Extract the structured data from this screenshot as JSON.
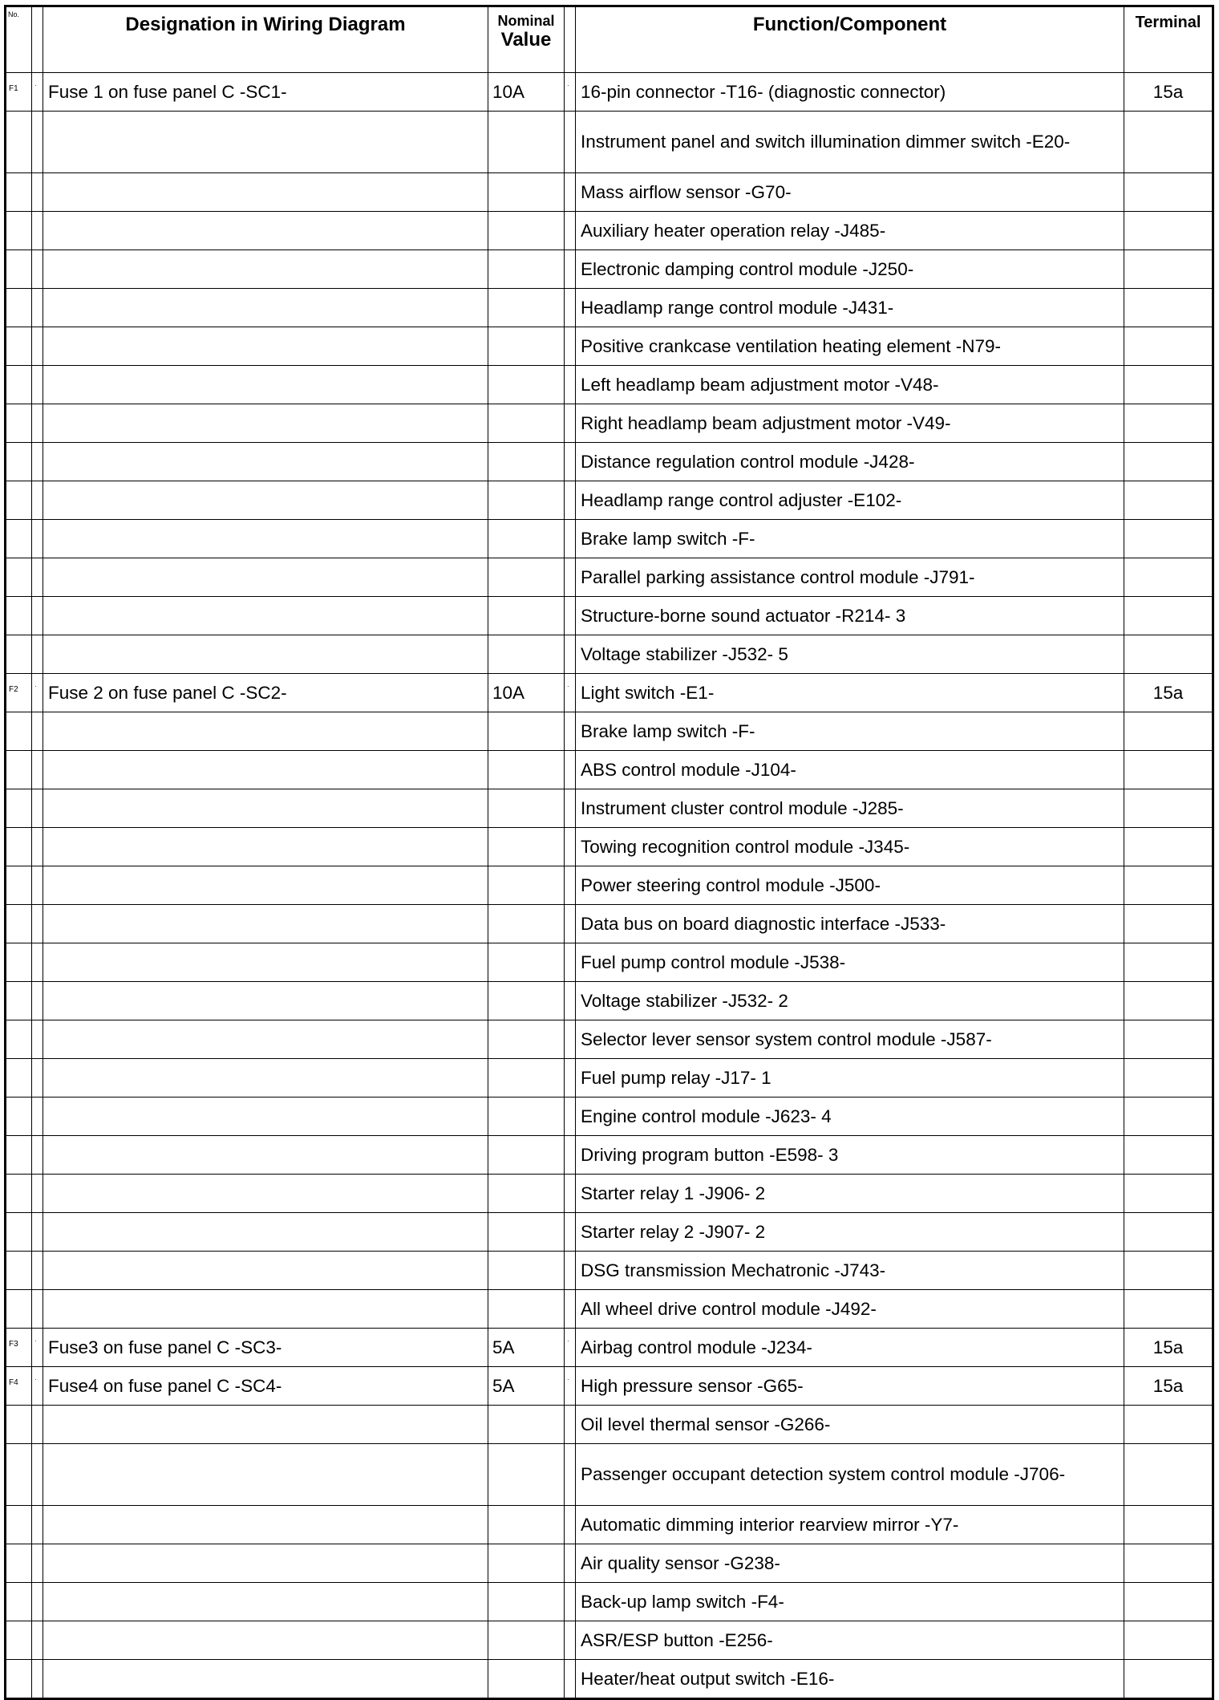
{
  "headers": {
    "no": "No.",
    "designation": "Designation in Wiring Diagram",
    "nominal_line1": "Nominal",
    "nominal_line2": "Value",
    "function": "Function/Component",
    "terminal": "Terminal"
  },
  "rows": [
    {
      "no": "F1",
      "designation": "Fuse 1 on fuse panel C -SC1-",
      "nominal": "10A",
      "function": "16-pin connector -T16- (diagnostic connector)",
      "terminal": "15a"
    },
    {
      "function": "Instrument panel and switch illumination dimmer switch -E20-",
      "tall": true
    },
    {
      "function": "Mass airflow sensor -G70-"
    },
    {
      "function": "Auxiliary heater operation relay -J485-"
    },
    {
      "function": "Electronic damping control module -J250-"
    },
    {
      "function": "Headlamp range control module -J431-"
    },
    {
      "function": "Positive crankcase ventilation heating element -N79-"
    },
    {
      "function": "Left headlamp beam adjustment motor -V48-"
    },
    {
      "function": "Right headlamp beam adjustment motor -V49-"
    },
    {
      "function": "Distance regulation control module -J428-"
    },
    {
      "function": "Headlamp range control adjuster -E102-"
    },
    {
      "function": "Brake lamp switch -F-"
    },
    {
      "function": "Parallel parking assistance control module -J791-"
    },
    {
      "function": "Structure-borne sound actuator -R214- 3"
    },
    {
      "function": "Voltage stabilizer -J532- 5"
    },
    {
      "no": "F2",
      "designation": "Fuse 2 on fuse panel C -SC2-",
      "nominal": "10A",
      "function": "Light switch -E1-",
      "terminal": "15a"
    },
    {
      "function": "Brake lamp switch -F-"
    },
    {
      "function": "ABS control module -J104-"
    },
    {
      "function": "Instrument cluster control module -J285-"
    },
    {
      "function": "Towing recognition control module -J345-"
    },
    {
      "function": "Power steering control module -J500-"
    },
    {
      "function": "Data bus on board diagnostic interface -J533-"
    },
    {
      "function": "Fuel pump control module -J538-"
    },
    {
      "function": "Voltage stabilizer -J532- 2"
    },
    {
      "function": "Selector lever sensor system control module -J587-"
    },
    {
      "function": "Fuel pump relay -J17- 1"
    },
    {
      "function": "Engine control module -J623- 4"
    },
    {
      "function": "Driving program button -E598- 3"
    },
    {
      "function": "Starter relay 1 -J906- 2"
    },
    {
      "function": "Starter relay 2 -J907- 2"
    },
    {
      "function": "DSG transmission Mechatronic -J743-"
    },
    {
      "function": "All wheel drive control module -J492-"
    },
    {
      "no": "F3",
      "designation": "Fuse3 on fuse panel C -SC3-",
      "nominal": "5A",
      "function": "Airbag control module -J234-",
      "terminal": "15a"
    },
    {
      "no": "F4",
      "designation": "Fuse4 on fuse panel C -SC4-",
      "nominal": "5A",
      "function": "High pressure sensor -G65-",
      "terminal": "15a"
    },
    {
      "function": "Oil level thermal sensor -G266-"
    },
    {
      "function": "Passenger occupant detection system control module -J706-",
      "tall": true
    },
    {
      "function": "Automatic dimming interior rearview mirror -Y7-"
    },
    {
      "function": "Air quality sensor -G238-"
    },
    {
      "function": "Back-up lamp switch -F4-"
    },
    {
      "function": "ASR/ESP button -E256-"
    },
    {
      "function": "Heater/heat output switch -E16-"
    }
  ]
}
